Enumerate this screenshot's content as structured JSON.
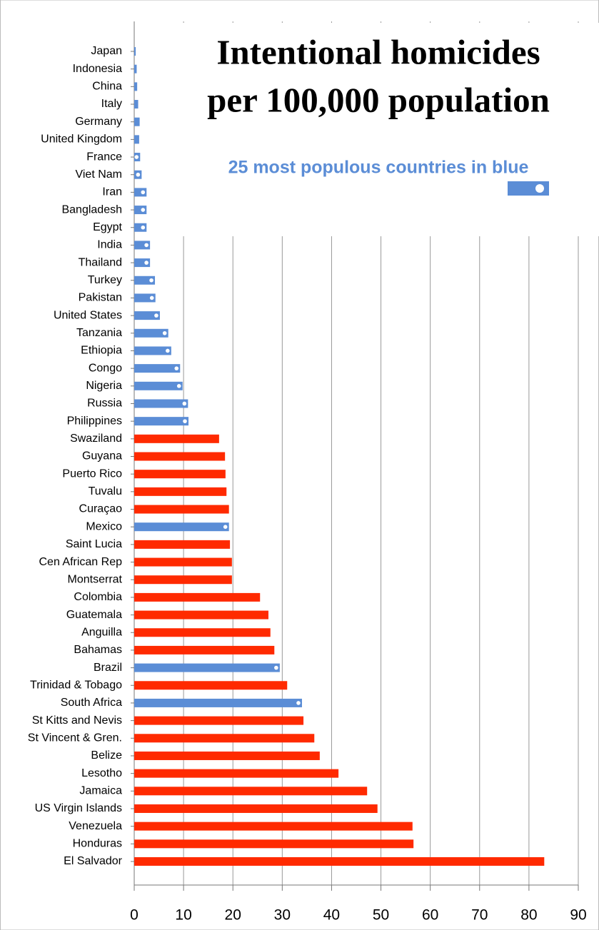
{
  "chart_data": {
    "type": "bar",
    "orientation": "horizontal",
    "title": [
      "Intentional homicides",
      "per 100,000 population"
    ],
    "legend": {
      "label": "25 most populous countries in blue",
      "color": "#5b8dd6"
    },
    "categories": [
      "Japan",
      "Indonesia",
      "China",
      "Italy",
      "Germany",
      "United Kingdom",
      "France",
      "Viet Nam",
      "Iran",
      "Bangladesh",
      "Egypt",
      "India",
      "Thailand",
      "Turkey",
      "Pakistan",
      "United States",
      "Tanzania",
      "Ethiopia",
      "Congo",
      "Nigeria",
      "Russia",
      "Philippines",
      "Swaziland",
      "Guyana",
      "Puerto Rico",
      "Tuvalu",
      "Curaçao",
      "Mexico",
      "Saint Lucia",
      "Cen African Rep",
      "Montserrat",
      "Colombia",
      "Guatemala",
      "Anguilla",
      "Bahamas",
      "Brazil",
      "Trinidad & Tobago",
      "South Africa",
      "St Kitts and Nevis",
      "St Vincent & Gren.",
      "Belize",
      "Lesotho",
      "Jamaica",
      "US Virgin Islands",
      "Venezuela",
      "Honduras",
      "El Salvador"
    ],
    "values": [
      0.3,
      0.5,
      0.6,
      0.8,
      1.1,
      1.0,
      1.2,
      1.5,
      2.5,
      2.5,
      2.5,
      3.2,
      3.2,
      4.2,
      4.3,
      5.2,
      6.9,
      7.5,
      9.3,
      9.8,
      10.9,
      11.0,
      17.2,
      18.4,
      18.5,
      18.7,
      19.2,
      19.2,
      19.4,
      19.8,
      19.8,
      25.5,
      27.2,
      27.6,
      28.4,
      29.5,
      31.0,
      34.0,
      34.3,
      36.5,
      37.6,
      41.4,
      47.2,
      49.3,
      56.4,
      56.6,
      83.1
    ],
    "colors": [
      "#5b8dd6",
      "#5b8dd6",
      "#5b8dd6",
      "#5b8dd6",
      "#5b8dd6",
      "#5b8dd6",
      "#5b8dd6",
      "#5b8dd6",
      "#5b8dd6",
      "#5b8dd6",
      "#5b8dd6",
      "#5b8dd6",
      "#5b8dd6",
      "#5b8dd6",
      "#5b8dd6",
      "#5b8dd6",
      "#5b8dd6",
      "#5b8dd6",
      "#5b8dd6",
      "#5b8dd6",
      "#5b8dd6",
      "#5b8dd6",
      "#ff2a00",
      "#ff2a00",
      "#ff2a00",
      "#ff2a00",
      "#ff2a00",
      "#5b8dd6",
      "#ff2a00",
      "#ff2a00",
      "#ff2a00",
      "#ff2a00",
      "#ff2a00",
      "#ff2a00",
      "#ff2a00",
      "#5b8dd6",
      "#ff2a00",
      "#5b8dd6",
      "#ff2a00",
      "#ff2a00",
      "#ff2a00",
      "#ff2a00",
      "#ff2a00",
      "#ff2a00",
      "#ff2a00",
      "#ff2a00",
      "#ff2a00"
    ],
    "xlim": [
      0,
      90
    ],
    "xticks": [
      0,
      10,
      20,
      30,
      40,
      50,
      60,
      70,
      80,
      90
    ],
    "grid": true
  }
}
